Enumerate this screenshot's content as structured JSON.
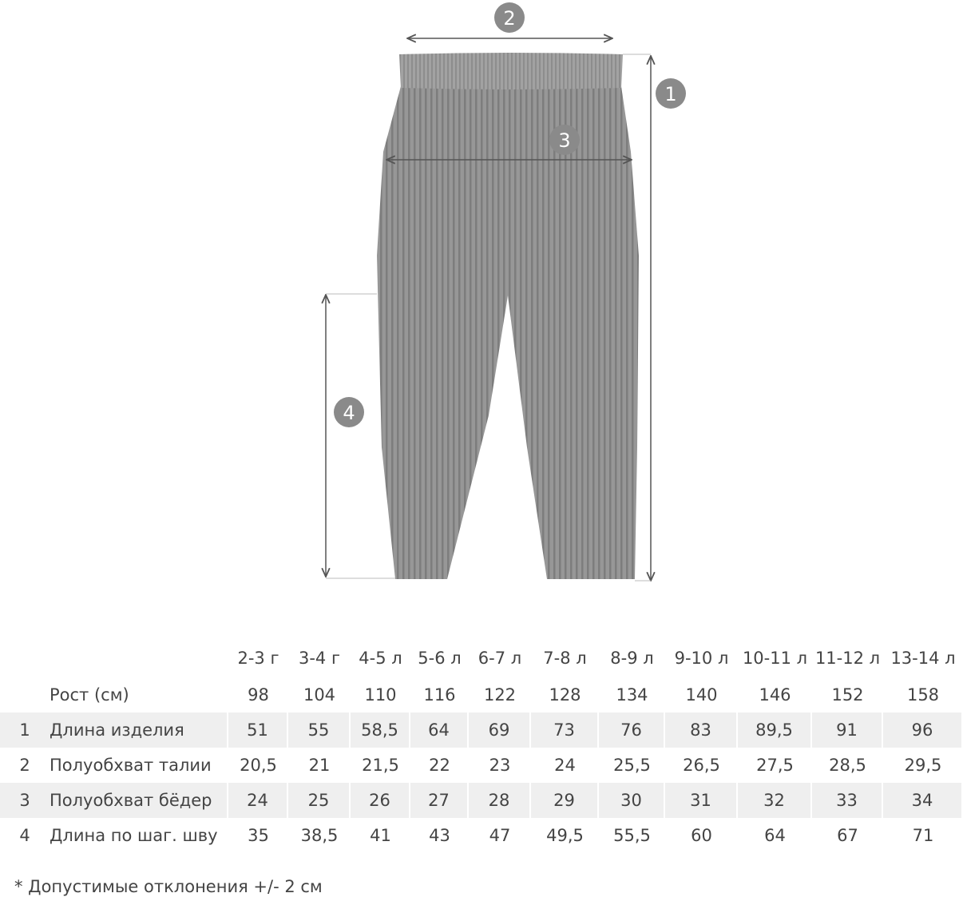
{
  "diagram": {
    "markers": [
      "1",
      "2",
      "3",
      "4"
    ],
    "colors": {
      "garment": "#8e8e8e",
      "arrow": "#555555",
      "marker": "#8a8a8a"
    }
  },
  "table": {
    "sizes": [
      "2-3 г",
      "3-4 г",
      "4-5 л",
      "5-6 л",
      "6-7 л",
      "7-8 л",
      "8-9 л",
      "9-10 л",
      "10-11 л",
      "11-12 л",
      "13-14 л"
    ],
    "height_row": {
      "label": "Рост (см)",
      "values": [
        "98",
        "104",
        "110",
        "116",
        "122",
        "128",
        "134",
        "140",
        "146",
        "152",
        "158"
      ]
    },
    "rows": [
      {
        "index": "1",
        "label": "Длина изделия",
        "values": [
          "51",
          "55",
          "58,5",
          "64",
          "69",
          "73",
          "76",
          "83",
          "89,5",
          "91",
          "96"
        ]
      },
      {
        "index": "2",
        "label": "Полуобхват талии",
        "values": [
          "20,5",
          "21",
          "21,5",
          "22",
          "23",
          "24",
          "25,5",
          "26,5",
          "27,5",
          "28,5",
          "29,5"
        ]
      },
      {
        "index": "3",
        "label": "Полуобхват бёдер",
        "values": [
          "24",
          "25",
          "26",
          "27",
          "28",
          "29",
          "30",
          "31",
          "32",
          "33",
          "34"
        ]
      },
      {
        "index": "4",
        "label": "Длина по шаг. шву",
        "values": [
          "35",
          "38,5",
          "41",
          "43",
          "47",
          "49,5",
          "55,5",
          "60",
          "64",
          "67",
          "71"
        ]
      }
    ]
  },
  "footnote": "* Допустимые отклонения +/- 2 см"
}
